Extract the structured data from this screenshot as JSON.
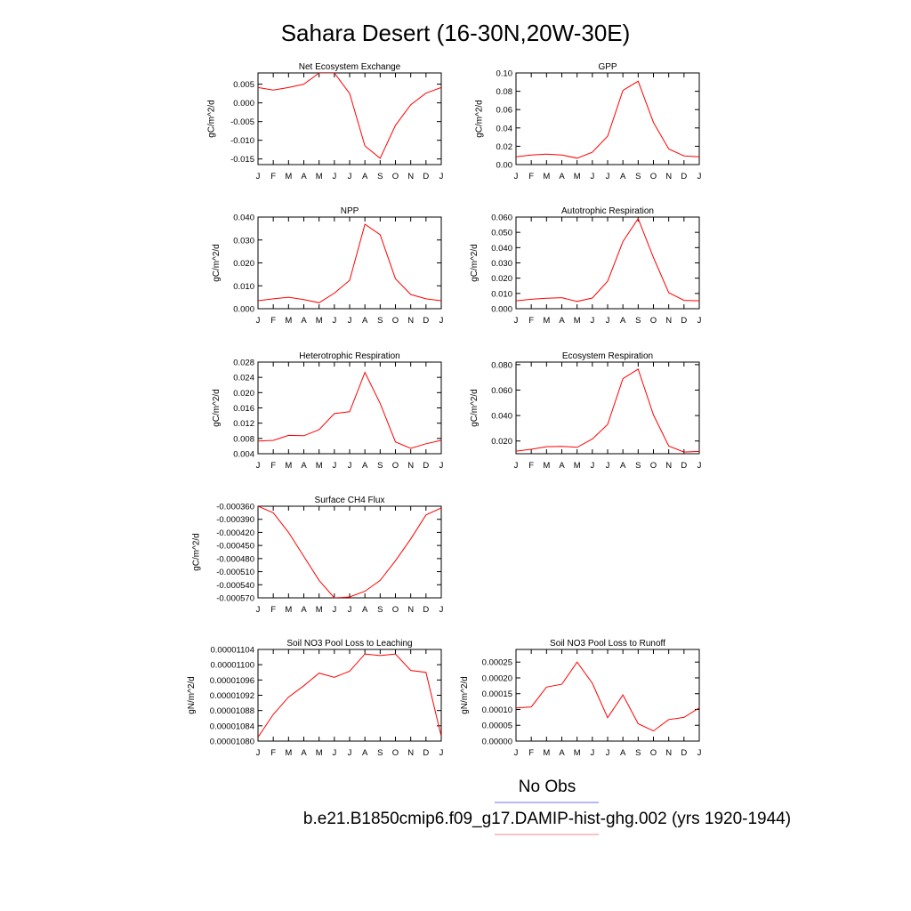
{
  "figure": {
    "title": "Sahara Desert (16-30N,20W-30E)"
  },
  "legend": {
    "entries": [
      {
        "label": "No Obs",
        "color": "#8c8cf0"
      },
      {
        "label": "b.e21.B1850cmip6.f09_g17.DAMIP-hist-ghg.002 (yrs 1920-1944)",
        "color": "#f0a0a0"
      }
    ]
  },
  "colors": {
    "series": "#ff0000",
    "axis": "#000000"
  },
  "chart_data": [
    {
      "type": "line",
      "title": "Net Ecosystem Exchange",
      "ylabel": "gC/m^2/d",
      "categories": [
        "J",
        "F",
        "M",
        "A",
        "M",
        "J",
        "J",
        "A",
        "S",
        "O",
        "N",
        "D",
        "J"
      ],
      "ylim": [
        -0.0165,
        0.008
      ],
      "yticks": [
        0.005,
        0.0,
        -0.005,
        -0.01,
        -0.015
      ],
      "yticklabels": [
        "0.005",
        "0.000",
        "-0.005",
        "-0.010",
        "-0.015"
      ],
      "series": [
        {
          "values": [
            0.0041,
            0.0034,
            0.0041,
            0.005,
            0.008,
            0.008,
            0.0025,
            -0.0115,
            -0.0148,
            -0.006,
            -0.0005,
            0.0026,
            0.0041
          ]
        }
      ]
    },
    {
      "type": "line",
      "title": "GPP",
      "ylabel": "gC/m^2/d",
      "categories": [
        "J",
        "F",
        "M",
        "A",
        "M",
        "J",
        "J",
        "A",
        "S",
        "O",
        "N",
        "D",
        "J"
      ],
      "ylim": [
        0,
        0.1
      ],
      "yticks": [
        0,
        0.02,
        0.04,
        0.06,
        0.08,
        0.1
      ],
      "yticklabels": [
        "0.00",
        "0.02",
        "0.04",
        "0.06",
        "0.08",
        "0.10"
      ],
      "series": [
        {
          "values": [
            0.0085,
            0.0105,
            0.0115,
            0.0105,
            0.007,
            0.0135,
            0.031,
            0.081,
            0.091,
            0.046,
            0.017,
            0.0095,
            0.0085
          ]
        }
      ]
    },
    {
      "type": "line",
      "title": "NPP",
      "ylabel": "gC/m^2/d",
      "categories": [
        "J",
        "F",
        "M",
        "A",
        "M",
        "J",
        "J",
        "A",
        "S",
        "O",
        "N",
        "D",
        "J"
      ],
      "ylim": [
        0,
        0.04
      ],
      "yticks": [
        0,
        0.01,
        0.02,
        0.03,
        0.04
      ],
      "yticklabels": [
        "0.000",
        "0.010",
        "0.020",
        "0.030",
        "0.040"
      ],
      "series": [
        {
          "values": [
            0.0035,
            0.0043,
            0.005,
            0.004,
            0.0026,
            0.0068,
            0.0124,
            0.0369,
            0.0323,
            0.0131,
            0.0062,
            0.0043,
            0.0035
          ]
        }
      ]
    },
    {
      "type": "line",
      "title": "Autotrophic Respiration",
      "ylabel": "gC/m^2/d",
      "categories": [
        "J",
        "F",
        "M",
        "A",
        "M",
        "J",
        "J",
        "A",
        "S",
        "O",
        "N",
        "D",
        "J"
      ],
      "ylim": [
        0,
        0.06
      ],
      "yticks": [
        0,
        0.01,
        0.02,
        0.03,
        0.04,
        0.05,
        0.06
      ],
      "yticklabels": [
        "0.000",
        "0.010",
        "0.020",
        "0.030",
        "0.040",
        "0.050",
        "0.060"
      ],
      "series": [
        {
          "values": [
            0.0052,
            0.0062,
            0.0068,
            0.0072,
            0.0048,
            0.007,
            0.018,
            0.044,
            0.059,
            0.0335,
            0.0105,
            0.0055,
            0.0052
          ]
        }
      ]
    },
    {
      "type": "line",
      "title": "Heterotrophic Respiration",
      "ylabel": "gC/m^2/d",
      "categories": [
        "J",
        "F",
        "M",
        "A",
        "M",
        "J",
        "J",
        "A",
        "S",
        "O",
        "N",
        "D",
        "J"
      ],
      "ylim": [
        0.004,
        0.028
      ],
      "yticks": [
        0.004,
        0.008,
        0.012,
        0.016,
        0.02,
        0.024,
        0.028
      ],
      "yticklabels": [
        "0.004",
        "0.008",
        "0.012",
        "0.016",
        "0.020",
        "0.024",
        "0.028"
      ],
      "series": [
        {
          "values": [
            0.0073,
            0.0075,
            0.0088,
            0.0087,
            0.0103,
            0.0145,
            0.015,
            0.0253,
            0.0172,
            0.0071,
            0.0054,
            0.0066,
            0.0075
          ]
        }
      ]
    },
    {
      "type": "line",
      "title": "Ecosystem Respiration",
      "ylabel": "gC/m^2/d",
      "categories": [
        "J",
        "F",
        "M",
        "A",
        "M",
        "J",
        "J",
        "A",
        "S",
        "O",
        "N",
        "D",
        "J"
      ],
      "ylim": [
        0.01,
        0.082
      ],
      "yticks": [
        0.02,
        0.04,
        0.06,
        0.08
      ],
      "yticklabels": [
        "0.020",
        "0.040",
        "0.060",
        "0.080"
      ],
      "series": [
        {
          "values": [
            0.012,
            0.0135,
            0.0155,
            0.0158,
            0.015,
            0.0215,
            0.033,
            0.069,
            0.0765,
            0.0405,
            0.016,
            0.0113,
            0.0118
          ]
        }
      ]
    },
    {
      "type": "line",
      "title": "Surface CH4 Flux",
      "ylabel": "gC/m^2/d",
      "categories": [
        "J",
        "F",
        "M",
        "A",
        "M",
        "J",
        "J",
        "A",
        "S",
        "O",
        "N",
        "D",
        "J"
      ],
      "ylim": [
        -0.00057,
        -0.00036
      ],
      "yticks": [
        -0.00036,
        -0.00039,
        -0.00042,
        -0.00045,
        -0.00048,
        -0.00051,
        -0.00054,
        -0.00057
      ],
      "yticklabels": [
        "-0.000360",
        "-0.000390",
        "-0.000420",
        "-0.000450",
        "-0.000480",
        "-0.000510",
        "-0.000540",
        "-0.000570"
      ],
      "series": [
        {
          "values": [
            -0.00036,
            -0.000375,
            -0.00042,
            -0.000475,
            -0.00053,
            -0.00057,
            -0.000568,
            -0.000555,
            -0.00053,
            -0.000485,
            -0.000435,
            -0.00038,
            -0.000364
          ]
        }
      ]
    },
    {
      "type": "line",
      "title": "Soil NO3 Pool Loss to Leaching",
      "ylabel": "gN/m^2/d",
      "categories": [
        "J",
        "F",
        "M",
        "A",
        "M",
        "J",
        "J",
        "A",
        "S",
        "O",
        "N",
        "D",
        "J"
      ],
      "ylim": [
        1.08e-05,
        1.104e-05
      ],
      "yticks": [
        1.08e-05,
        1.084e-05,
        1.088e-05,
        1.092e-05,
        1.096e-05,
        1.1e-05,
        1.104e-05
      ],
      "yticklabels": [
        "0.00001080",
        "0.00001084",
        "0.00001088",
        "0.00001092",
        "0.00001096",
        "0.00001100",
        "0.00001104"
      ],
      "series": [
        {
          "values": [
            1.081e-05,
            1.087e-05,
            1.0915e-05,
            1.0945e-05,
            1.0978e-05,
            1.0967e-05,
            1.0983e-05,
            1.1028e-05,
            1.1024e-05,
            1.1028e-05,
            1.0985e-05,
            1.098e-05,
            1.0812e-05
          ]
        }
      ]
    },
    {
      "type": "line",
      "title": "Soil NO3 Pool Loss to Runoff",
      "ylabel": "gN/m^2/d",
      "categories": [
        "J",
        "F",
        "M",
        "A",
        "M",
        "J",
        "J",
        "A",
        "S",
        "O",
        "N",
        "D",
        "J"
      ],
      "ylim": [
        0,
        0.00029
      ],
      "yticks": [
        0,
        5e-05,
        0.0001,
        0.00015,
        0.0002,
        0.00025
      ],
      "yticklabels": [
        "0.00000",
        "0.00005",
        "0.00010",
        "0.00015",
        "0.00020",
        "0.00025"
      ],
      "series": [
        {
          "values": [
            0.000105,
            0.000108,
            0.000171,
            0.00018,
            0.00025,
            0.000183,
            7.4e-05,
            0.000146,
            5.5e-05,
            3.2e-05,
            6.8e-05,
            7.5e-05,
            0.000105
          ]
        }
      ]
    }
  ]
}
